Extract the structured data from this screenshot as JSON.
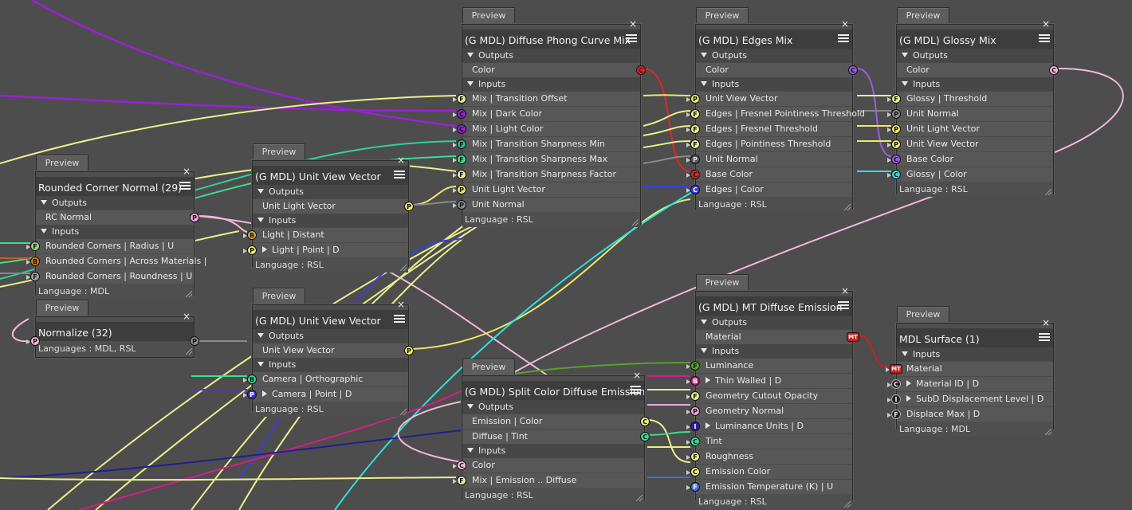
{
  "preview_label": "Preview",
  "sections": {
    "outputs": "Outputs",
    "inputs": "Inputs"
  },
  "nodes": {
    "rounded": {
      "title": "Rounded Corner Normal (29)",
      "outputs": [
        "RC Normal"
      ],
      "inputs": [
        "Rounded Corners | Radius  | U",
        "Rounded Corners | Across Materials  |",
        "Rounded Corners | Roundness  | U"
      ],
      "language": "Language : MDL"
    },
    "normalize": {
      "title": "Normalize (32)",
      "language": "Languages : MDL, RSL"
    },
    "uvv1": {
      "title": "(G MDL) Unit View Vector",
      "outputs": [
        "Unit Light Vector"
      ],
      "inputs": [
        "Light | Distant",
        "Light | Point  | D"
      ],
      "language": "Language : RSL"
    },
    "uvv2": {
      "title": "(G MDL) Unit View Vector",
      "outputs": [
        "Unit View Vector"
      ],
      "inputs": [
        "Camera | Orthographic",
        "Camera | Point  | D"
      ],
      "language": "Language : RSL"
    },
    "phong": {
      "title": "(G MDL) Diffuse Phong Curve Mix",
      "outputs": [
        "Color"
      ],
      "inputs": [
        "Mix | Transition Offset",
        "Mix | Dark Color",
        "Mix | Light Color",
        "Mix | Transition Sharpness Min",
        "Mix | Transition Sharpness Max",
        "Mix | Transition Sharpness Factor",
        "Unit Light Vector",
        "Unit Normal"
      ],
      "language": "Language : RSL"
    },
    "edges": {
      "title": "(G MDL) Edges Mix",
      "outputs": [
        "Color"
      ],
      "inputs": [
        "Unit View Vector",
        "Edges | Fresnel Pointiness Threshold",
        "Edges | Fresnel Threshold",
        "Edges | Pointiness Threshold",
        "Unit Normal",
        "Base Color",
        "Edges | Color"
      ],
      "language": "Language : RSL"
    },
    "glossy": {
      "title": "(G MDL) Glossy Mix",
      "outputs": [
        "Color"
      ],
      "inputs": [
        "Glossy | Threshold",
        "Unit Normal",
        "Unit Light Vector",
        "Unit View Vector",
        "Base Color",
        "Glossy | Color"
      ],
      "language": "Language : RSL"
    },
    "split": {
      "title": "(G MDL) Split Color Diffuse Emission",
      "outputs": [
        "Emission | Color",
        "Diffuse | Tint"
      ],
      "inputs": [
        "Color",
        "Mix | Emission .. Diffuse"
      ],
      "language": "Language : RSL"
    },
    "emission": {
      "title": "(G MDL) MT Diffuse Emission",
      "outputs": [
        "Material"
      ],
      "inputs": [
        "Luminance",
        "Thin Walled  | D",
        "Geometry Cutout Opacity",
        "Geometry Normal",
        "Luminance Units  | D",
        "Tint",
        "Roughness",
        "Emission Color",
        "Emission Temperature (K)  | U"
      ],
      "language": "Language : RSL"
    },
    "surface": {
      "title": "MDL Surface (1)",
      "inputs": [
        "Material",
        "Material ID  | D",
        "SubD Displacement Level  | D",
        "Displace Max  | D"
      ],
      "language": "Language : MDL"
    }
  },
  "port_letters": {
    "float": "F",
    "color": "C",
    "point": "P",
    "bool": "B",
    "int": "I",
    "material": "MT"
  },
  "colors": {
    "background": "#4d4d4d",
    "float": "#e9f08d",
    "color_purple": "#9b1fd6",
    "color_pink": "#f2b8d8",
    "point": "#ebe96a",
    "point_pink": "#f0a8dc",
    "green": "#3fdc8e",
    "red": "#e02626",
    "blue": "#3d3dde",
    "cyan": "#2ae3e3"
  }
}
